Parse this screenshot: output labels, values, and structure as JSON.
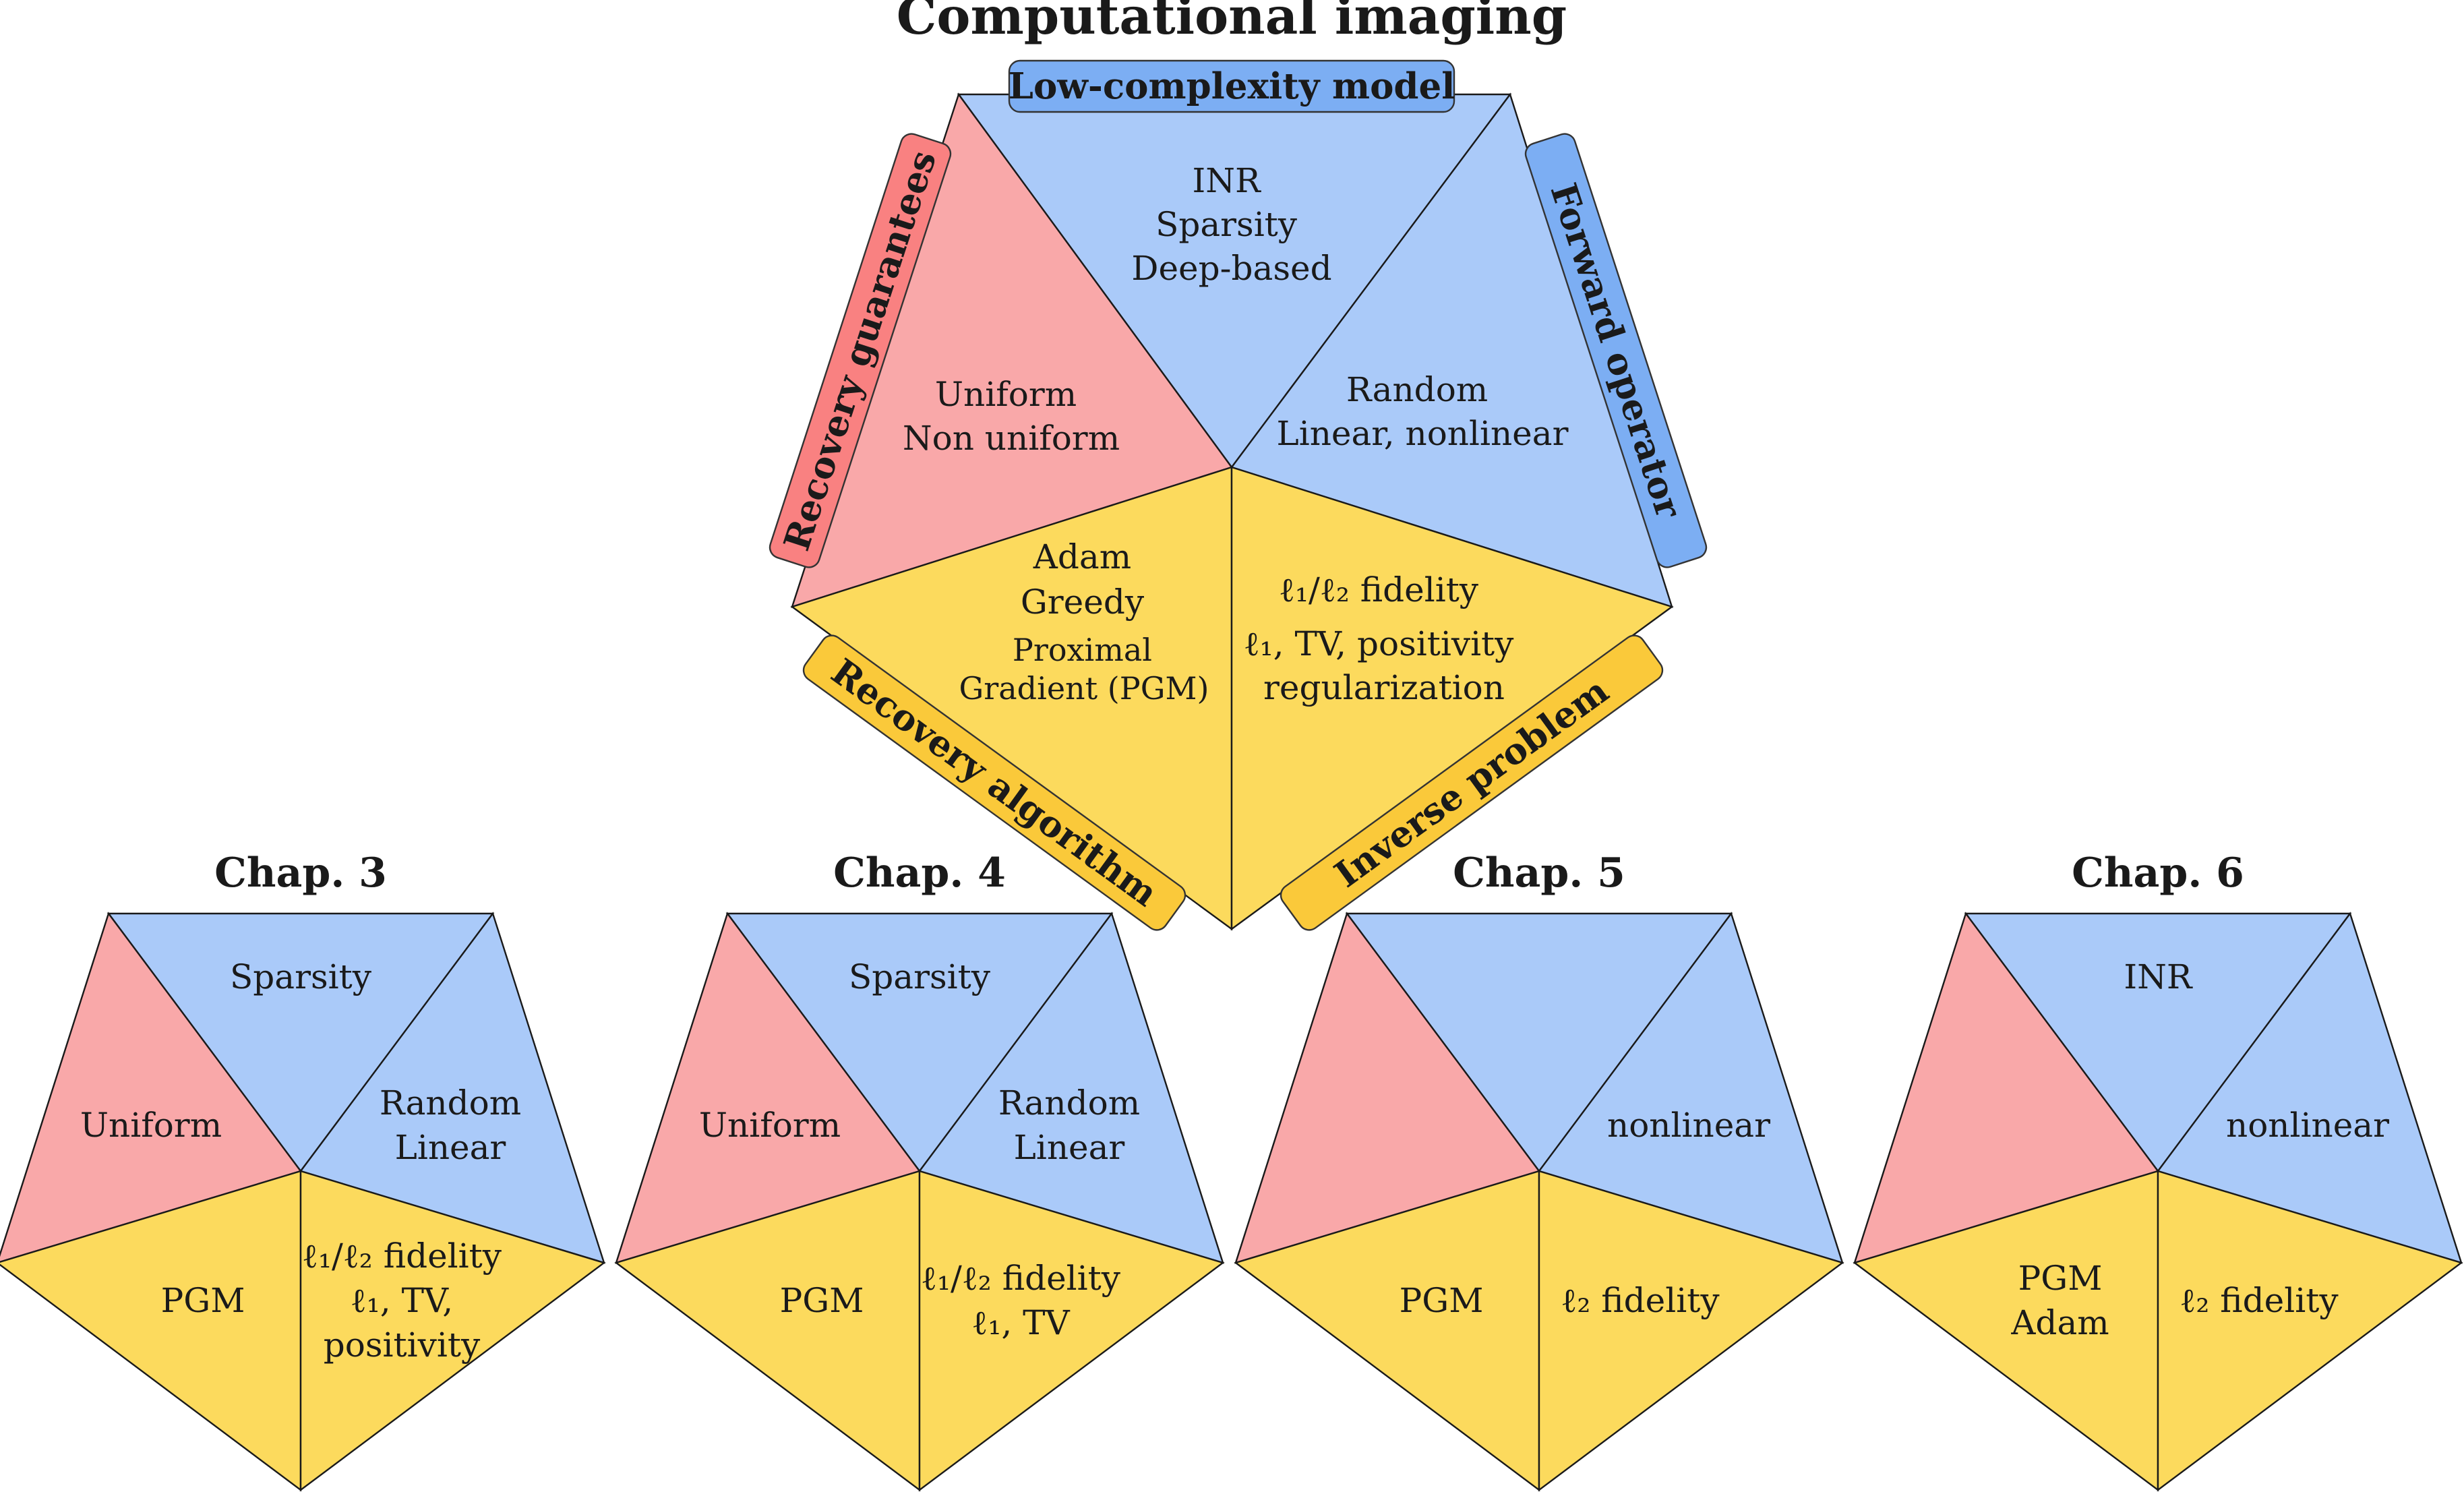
{
  "title": "Computational imaging",
  "colors": {
    "red": "#F9A8A9",
    "blue": "#AACAF9",
    "yellow": "#FCDA5D",
    "tag_red": "#F98181",
    "tag_blue": "#7CAEF3",
    "tag_yellow": "#FAC93A"
  },
  "main": {
    "tags": {
      "model": "Low-complexity model",
      "forward": "Forward operator",
      "inverse": "Inverse problem",
      "algorithm": "Recovery algorithm",
      "guarantees": "Recovery guarantees"
    },
    "model_lines": [
      "INR",
      "Sparsity",
      "Deep-based"
    ],
    "forward_lines": [
      "Random",
      "Linear, nonlinear"
    ],
    "guarantees_lines": [
      "Uniform",
      "Non uniform"
    ],
    "algorithm_lines": [
      "Adam",
      "Greedy",
      "Proximal",
      "Gradient (PGM)"
    ],
    "inverse_lines": [
      "ℓ₁/ℓ₂ fidelity",
      "ℓ₁, TV, positivity",
      "regularization"
    ]
  },
  "chapters": [
    {
      "title": "Chap. 3",
      "model": [
        "Sparsity"
      ],
      "forward": [
        "Random",
        "Linear"
      ],
      "guarantees": [
        "Uniform"
      ],
      "algorithm": [
        "PGM"
      ],
      "inverse": [
        "ℓ₁/ℓ₂ fidelity",
        "ℓ₁, TV,",
        "positivity"
      ]
    },
    {
      "title": "Chap. 4",
      "model": [
        "Sparsity"
      ],
      "forward": [
        "Random",
        "Linear"
      ],
      "guarantees": [
        "Uniform"
      ],
      "algorithm": [
        "PGM"
      ],
      "inverse": [
        "ℓ₁/ℓ₂ fidelity",
        "ℓ₁, TV"
      ]
    },
    {
      "title": "Chap. 5",
      "model": [],
      "forward": [
        "nonlinear"
      ],
      "guarantees": [],
      "algorithm": [
        "PGM"
      ],
      "inverse": [
        "ℓ₂ fidelity"
      ]
    },
    {
      "title": "Chap. 6",
      "model": [
        "INR"
      ],
      "forward": [
        "nonlinear"
      ],
      "guarantees": [],
      "algorithm": [
        "PGM",
        "Adam"
      ],
      "inverse": [
        "ℓ₂ fidelity"
      ]
    }
  ]
}
